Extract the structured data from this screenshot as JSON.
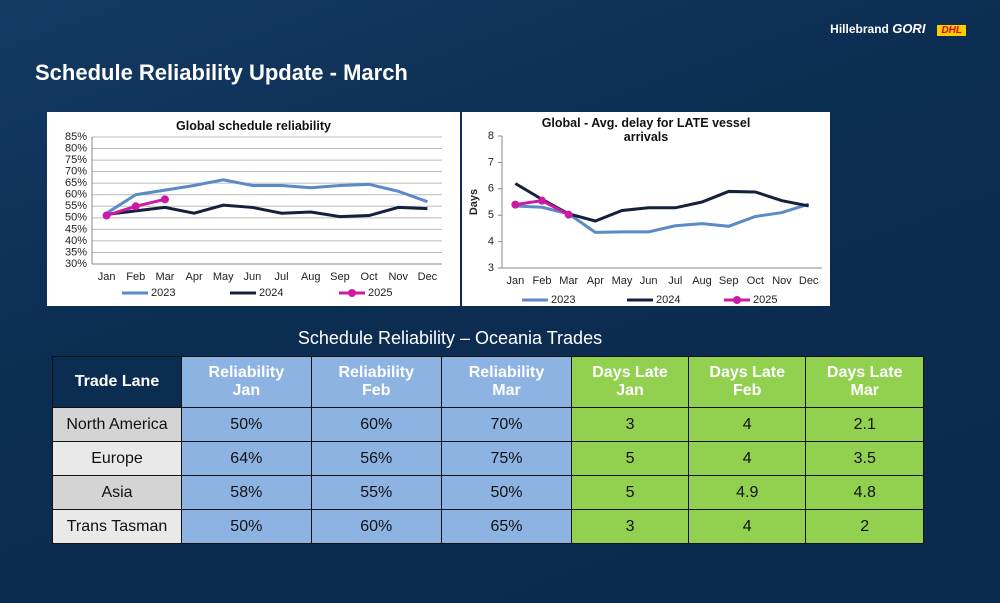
{
  "header": {
    "title": "Schedule Reliability Update - March",
    "brand": "Hillebrand",
    "brand_bold": "GORI",
    "partner": "DHL"
  },
  "chart_data": [
    {
      "type": "line",
      "title": "Global schedule reliability",
      "categories": [
        "Jan",
        "Feb",
        "Mar",
        "Apr",
        "May",
        "Jun",
        "Jul",
        "Aug",
        "Sep",
        "Oct",
        "Nov",
        "Dec"
      ],
      "ylim": [
        30,
        85
      ],
      "yticks": [
        {
          "value": 30,
          "label": "30%"
        },
        {
          "value": 35,
          "label": "35%"
        },
        {
          "value": 40,
          "label": "40%"
        },
        {
          "value": 45,
          "label": "45%"
        },
        {
          "value": 50,
          "label": "50%"
        },
        {
          "value": 55,
          "label": "55%"
        },
        {
          "value": 60,
          "label": "60%"
        },
        {
          "value": 65,
          "label": "65%"
        },
        {
          "value": 70,
          "label": "70%"
        },
        {
          "value": 75,
          "label": "75%"
        },
        {
          "value": 80,
          "label": "80%"
        },
        {
          "value": 85,
          "label": "85%"
        }
      ],
      "grid": true,
      "series": [
        {
          "name": "2023",
          "color": "#5b8ac6",
          "values": [
            52,
            60,
            62,
            64,
            66.5,
            64,
            64,
            63,
            64,
            64.5,
            61.5,
            57
          ]
        },
        {
          "name": "2024",
          "color": "#14213d",
          "values": [
            51.5,
            53,
            54.5,
            52,
            55.5,
            54.5,
            52,
            52.5,
            50.5,
            51,
            54.5,
            54
          ]
        },
        {
          "name": "2025",
          "color": "#cc1aa5",
          "markers": true,
          "values": [
            51,
            55,
            58,
            null,
            null,
            null,
            null,
            null,
            null,
            null,
            null,
            null
          ]
        }
      ]
    },
    {
      "type": "line",
      "title": "Global - Avg. delay for LATE vessel arrivals",
      "ylabel": "Days",
      "categories": [
        "Jan",
        "Feb",
        "Mar",
        "Apr",
        "May",
        "Jun",
        "Jul",
        "Aug",
        "Sep",
        "Oct",
        "Nov",
        "Dec"
      ],
      "ylim": [
        3,
        8
      ],
      "yticks": [
        3,
        4,
        5,
        6,
        7,
        8
      ],
      "grid": false,
      "series": [
        {
          "name": "2023",
          "color": "#5b8ac6",
          "values": [
            5.35,
            5.3,
            5.05,
            4.35,
            4.37,
            4.37,
            4.6,
            4.68,
            4.58,
            4.95,
            5.1,
            5.42
          ]
        },
        {
          "name": "2024",
          "color": "#14213d",
          "values": [
            6.2,
            5.6,
            5.05,
            4.78,
            5.18,
            5.28,
            5.28,
            5.5,
            5.9,
            5.88,
            5.55,
            5.35
          ]
        },
        {
          "name": "2025",
          "color": "#cc1aa5",
          "markers": true,
          "values": [
            5.4,
            5.55,
            5.02,
            null,
            null,
            null,
            null,
            null,
            null,
            null,
            null,
            null
          ]
        }
      ]
    }
  ],
  "table": {
    "caption": "Schedule Reliability – Oceania Trades",
    "columns": [
      "Trade Lane",
      "Reliability Jan",
      "Reliability Feb",
      "Reliability Mar",
      "Days Late Jan",
      "Days Late Feb",
      "Days Late Mar"
    ],
    "rows": [
      [
        "North America",
        "50%",
        "60%",
        "70%",
        "3",
        "4",
        "2.1"
      ],
      [
        "Europe",
        "64%",
        "56%",
        "75%",
        "5",
        "4",
        "3.5"
      ],
      [
        "Asia",
        "58%",
        "55%",
        "50%",
        "5",
        "4.9",
        "4.8"
      ],
      [
        "Trans Tasman",
        "50%",
        "60%",
        "65%",
        "3",
        "4",
        "2"
      ]
    ]
  }
}
